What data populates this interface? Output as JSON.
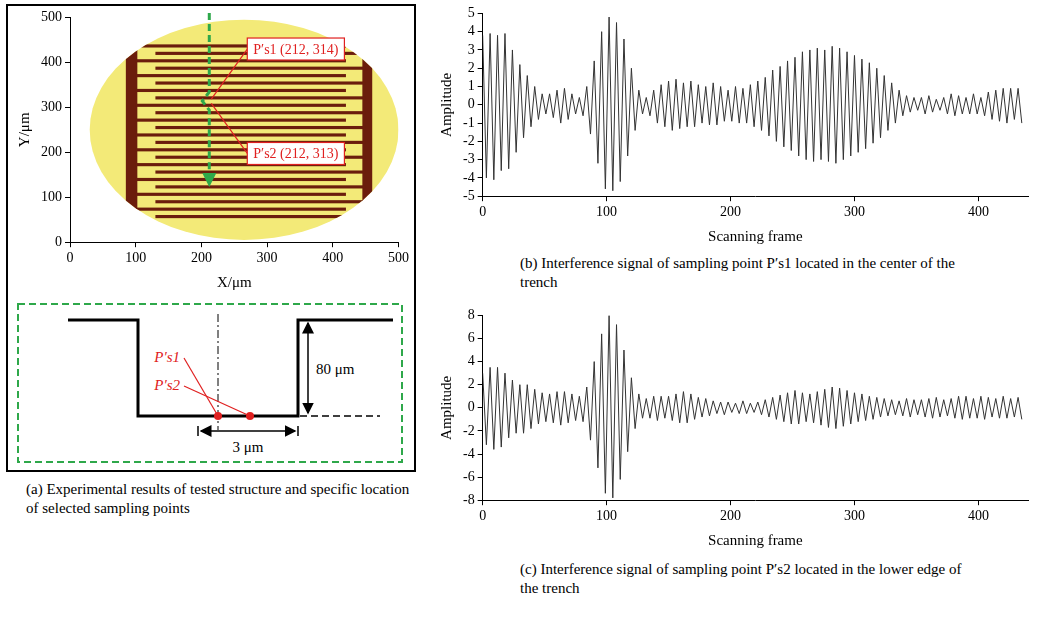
{
  "chart_data": [
    {
      "type": "image",
      "caption": "(a) Experimental results of tested structure and specific location of selected sampling points",
      "x_label": "X/μm",
      "y_label": "Y/μm",
      "xlim": [
        0,
        500
      ],
      "ylim": [
        0,
        500
      ],
      "xticks": [
        0,
        100,
        200,
        300,
        400,
        500
      ],
      "yticks": [
        0,
        100,
        200,
        300,
        400,
        500
      ],
      "grid": false,
      "annotations": [
        {
          "text": "P′s1 (212, 314)",
          "x": 212,
          "y": 314,
          "color": "#e02020"
        },
        {
          "text": "P′s2 (212, 313)",
          "x": 212,
          "y": 313,
          "color": "#e02020"
        }
      ]
    },
    {
      "type": "line",
      "caption": "(b) Interference signal of sampling point P′s1 located in the center of the trench",
      "x_label": "Scanning frame",
      "y_label": "Amplitude",
      "xlim": [
        0,
        440
      ],
      "ylim": [
        -5,
        5
      ],
      "xticks": [
        0,
        100,
        200,
        300,
        400
      ],
      "yticks": [
        -5,
        -4,
        -3,
        -2,
        -1,
        0,
        1,
        2,
        3,
        4,
        5
      ],
      "grid": false,
      "color": "#333333",
      "x": [
        0,
        3,
        6,
        9,
        12,
        15,
        18,
        21,
        24,
        27,
        30,
        33,
        36,
        39,
        42,
        45,
        48,
        51,
        54,
        57,
        60,
        63,
        66,
        69,
        72,
        75,
        78,
        81,
        84,
        87,
        90,
        93,
        96,
        99,
        102,
        105,
        108,
        111,
        114,
        117,
        120,
        123,
        126,
        129,
        132,
        135,
        138,
        141,
        144,
        147,
        150,
        153,
        156,
        159,
        162,
        165,
        168,
        171,
        174,
        177,
        180,
        183,
        186,
        189,
        192,
        195,
        198,
        201,
        204,
        207,
        210,
        213,
        216,
        219,
        222,
        225,
        228,
        231,
        234,
        237,
        240,
        243,
        246,
        249,
        252,
        255,
        258,
        261,
        264,
        267,
        270,
        273,
        276,
        279,
        282,
        285,
        288,
        291,
        294,
        297,
        300,
        303,
        306,
        309,
        312,
        315,
        318,
        321,
        324,
        327,
        330,
        333,
        336,
        339,
        342,
        345,
        348,
        351,
        354,
        357,
        360,
        363,
        366,
        369,
        372,
        375,
        378,
        381,
        384,
        387,
        390,
        393,
        396,
        399,
        402,
        405,
        408,
        411,
        414,
        417,
        420,
        423,
        426,
        429,
        432,
        435
      ],
      "values": [
        3.8,
        -4.0,
        3.9,
        -4.1,
        3.8,
        -3.6,
        3.9,
        -3.5,
        3.0,
        -2.6,
        2.2,
        -1.8,
        1.6,
        -1.2,
        1.0,
        -0.8,
        0.6,
        -0.5,
        0.6,
        -0.7,
        0.8,
        -1.0,
        0.9,
        -0.8,
        0.6,
        -0.5,
        0.4,
        -0.6,
        1.0,
        -1.6,
        2.4,
        -3.2,
        4.0,
        -4.6,
        4.8,
        -4.7,
        4.5,
        -4.2,
        3.6,
        -2.8,
        2.0,
        -1.4,
        0.8,
        -0.5,
        0.4,
        -0.6,
        0.8,
        -1.0,
        1.1,
        -1.2,
        1.3,
        -1.4,
        1.4,
        -1.3,
        1.2,
        -1.2,
        1.3,
        -1.2,
        1.1,
        -1.0,
        1.0,
        -1.1,
        1.2,
        -1.1,
        1.0,
        -0.9,
        0.8,
        -0.9,
        1.0,
        -1.0,
        0.9,
        -1.0,
        1.1,
        -1.2,
        1.3,
        -1.4,
        1.5,
        -1.7,
        1.9,
        -2.0,
        2.1,
        -2.3,
        2.4,
        -2.5,
        2.6,
        -2.8,
        2.9,
        -3.0,
        3.0,
        -3.1,
        3.1,
        -3.0,
        3.0,
        -3.1,
        3.2,
        -3.2,
        3.1,
        -3.0,
        2.9,
        -2.8,
        2.7,
        -2.6,
        2.5,
        -2.4,
        2.3,
        -2.1,
        2.0,
        -1.8,
        1.6,
        -1.4,
        1.2,
        -1.0,
        0.8,
        -0.6,
        0.5,
        -0.4,
        0.4,
        -0.3,
        0.4,
        -0.5,
        0.5,
        -0.4,
        0.3,
        -0.3,
        0.4,
        -0.5,
        0.6,
        -0.6,
        0.5,
        -0.5,
        0.4,
        -0.5,
        0.6,
        -0.5,
        0.4,
        -0.6,
        0.7,
        -0.8,
        0.8,
        -0.9,
        0.9,
        -1.0,
        0.9,
        -0.8,
        0.9,
        -1.0
      ]
    },
    {
      "type": "line",
      "caption": "(c) Interference signal of sampling point P′s2 located in the lower edge of the trench",
      "x_label": "Scanning frame",
      "y_label": "Amplitude",
      "xlim": [
        0,
        440
      ],
      "ylim": [
        -8,
        8
      ],
      "xticks": [
        0,
        100,
        200,
        300,
        400
      ],
      "yticks": [
        -8,
        -6,
        -4,
        -2,
        0,
        2,
        4,
        6,
        8
      ],
      "grid": false,
      "color": "#333333",
      "x": [
        0,
        3,
        6,
        9,
        12,
        15,
        18,
        21,
        24,
        27,
        30,
        33,
        36,
        39,
        42,
        45,
        48,
        51,
        54,
        57,
        60,
        63,
        66,
        69,
        72,
        75,
        78,
        81,
        84,
        87,
        90,
        93,
        96,
        99,
        102,
        105,
        108,
        111,
        114,
        117,
        120,
        123,
        126,
        129,
        132,
        135,
        138,
        141,
        144,
        147,
        150,
        153,
        156,
        159,
        162,
        165,
        168,
        171,
        174,
        177,
        180,
        183,
        186,
        189,
        192,
        195,
        198,
        201,
        204,
        207,
        210,
        213,
        216,
        219,
        222,
        225,
        228,
        231,
        234,
        237,
        240,
        243,
        246,
        249,
        252,
        255,
        258,
        261,
        264,
        267,
        270,
        273,
        276,
        279,
        282,
        285,
        288,
        291,
        294,
        297,
        300,
        303,
        306,
        309,
        312,
        315,
        318,
        321,
        324,
        327,
        330,
        333,
        336,
        339,
        342,
        345,
        348,
        351,
        354,
        357,
        360,
        363,
        366,
        369,
        372,
        375,
        378,
        381,
        384,
        387,
        390,
        393,
        396,
        399,
        402,
        405,
        408,
        411,
        414,
        417,
        420,
        423,
        426,
        429,
        432,
        435
      ],
      "values": [
        3.0,
        -3.2,
        3.5,
        -3.6,
        3.5,
        -3.4,
        3.0,
        -2.6,
        2.4,
        -2.2,
        2.0,
        -2.2,
        2.0,
        -1.8,
        1.6,
        -1.4,
        1.3,
        -1.2,
        1.2,
        -1.3,
        1.4,
        -1.5,
        1.4,
        -1.3,
        1.2,
        -1.1,
        1.0,
        -1.2,
        1.8,
        -2.8,
        4.0,
        -5.2,
        6.4,
        -7.4,
        8.0,
        -7.8,
        7.2,
        -6.2,
        5.0,
        -3.8,
        2.6,
        -1.8,
        1.2,
        -0.9,
        0.8,
        -0.9,
        1.0,
        -1.1,
        1.0,
        -0.9,
        1.0,
        -1.1,
        1.2,
        -1.3,
        1.4,
        -1.3,
        1.2,
        -1.0,
        0.9,
        -0.8,
        0.8,
        -0.7,
        0.6,
        -0.5,
        0.5,
        -0.6,
        0.5,
        -0.4,
        0.4,
        -0.5,
        0.6,
        -0.5,
        0.4,
        -0.4,
        0.5,
        -0.6,
        0.7,
        -0.8,
        0.9,
        -1.0,
        1.1,
        -1.2,
        1.3,
        -1.4,
        1.5,
        -1.4,
        1.3,
        -1.2,
        1.2,
        -1.3,
        1.4,
        -1.5,
        1.6,
        -1.7,
        1.8,
        -1.8,
        1.7,
        -1.6,
        1.5,
        -1.4,
        1.3,
        -1.2,
        1.2,
        -1.1,
        1.0,
        -1.0,
        0.9,
        -0.8,
        0.8,
        -0.7,
        0.7,
        -0.6,
        0.6,
        -0.7,
        0.8,
        -0.8,
        0.7,
        -0.6,
        0.7,
        -0.8,
        0.8,
        -0.9,
        0.9,
        -0.8,
        0.7,
        -0.7,
        0.8,
        -0.9,
        1.0,
        -1.0,
        1.0,
        -0.9,
        0.8,
        -0.9,
        1.0,
        -1.0,
        0.9,
        -0.8,
        0.8,
        -0.9,
        1.0,
        -0.9,
        0.8,
        -0.8,
        0.9,
        -1.0
      ]
    }
  ],
  "diagram": {
    "depth_label": "80 μm",
    "width_label": "3 μm",
    "points": [
      {
        "label": "P′s1",
        "color": "#e02020"
      },
      {
        "label": "P′s2",
        "color": "#e02020"
      }
    ]
  }
}
